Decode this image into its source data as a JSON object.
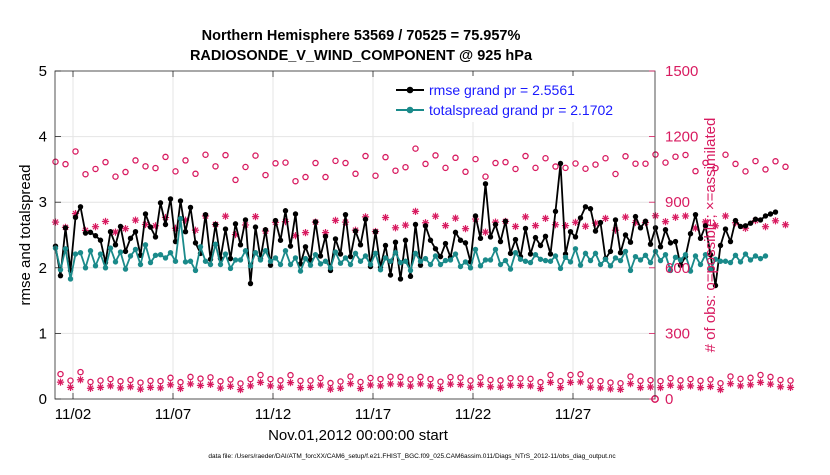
{
  "chart_data": {
    "type": "line",
    "title_line1": "Northern Hemisphere 53569 / 70525 = 75.957%",
    "title_line2": "RADIOSONDE_V_WIND_COMPONENT @ 925 hPa",
    "xlabel": "Nov.01,2012 00:00:00 start",
    "ylabel_left": "rmse and totalspread",
    "ylabel_right": "# of obs: o=possible; ×=assimilated",
    "xlim": [
      0.6,
      30.6
    ],
    "ylim_left": [
      0,
      5
    ],
    "ylim_right": [
      0,
      1500
    ],
    "x_tick_positions": [
      1.5,
      6.5,
      11.5,
      16.5,
      21.5,
      26.5
    ],
    "x_tick_labels": [
      "11/02",
      "11/07",
      "11/12",
      "11/17",
      "11/22",
      "11/27"
    ],
    "y_left_ticks": [
      0,
      1,
      2,
      3,
      4,
      5
    ],
    "y_left_tick_labels": [
      "0",
      "1",
      "2",
      "3",
      "4",
      "5"
    ],
    "y_right_ticks": [
      0,
      300,
      600,
      900,
      1200,
      1500
    ],
    "y_right_tick_labels": [
      "0",
      "300",
      "600",
      "900",
      "1200",
      "1500"
    ],
    "x_start": 0.625,
    "x_step": 0.25,
    "series": [
      {
        "name": "rmse grand pr = 2.5561",
        "color": "#000000",
        "axis": "left",
        "values": [
          2.33,
          1.88,
          2.61,
          1.96,
          2.77,
          2.93,
          2.53,
          2.54,
          2.49,
          2.42,
          2.08,
          2.55,
          2.35,
          2.63,
          2.25,
          2.45,
          2.55,
          2.19,
          2.82,
          2.62,
          2.47,
          2.99,
          2.66,
          3.05,
          2.4,
          3.02,
          2.55,
          2.92,
          2.38,
          2.22,
          2.81,
          2.13,
          2.66,
          2.14,
          2.59,
          2.14,
          2.67,
          2.35,
          2.73,
          1.76,
          2.62,
          2.14,
          2.58,
          2.04,
          2.72,
          2.42,
          2.87,
          2.33,
          2.82,
          2.06,
          2.32,
          2.12,
          2.7,
          2.18,
          2.48,
          1.96,
          2.44,
          2.21,
          2.81,
          2.17,
          2.56,
          2.35,
          2.74,
          2.02,
          2.55,
          2.01,
          2.34,
          1.89,
          2.39,
          1.83,
          2.42,
          1.87,
          2.66,
          2.04,
          2.64,
          2.42,
          2.29,
          2.17,
          2.37,
          2.16,
          2.54,
          2.42,
          2.38,
          2.09,
          2.79,
          2.45,
          3.28,
          2.47,
          2.66,
          2.4,
          2.71,
          2.22,
          2.43,
          2.17,
          2.6,
          2.21,
          2.46,
          2.34,
          2.48,
          2.21,
          2.86,
          3.59,
          2.21,
          2.55,
          2.47,
          2.76,
          2.93,
          2.9,
          2.56,
          2.69,
          2.14,
          2.25,
          2.73,
          2.23,
          2.5,
          2.39,
          2.78,
          2.61,
          2.71,
          2.36,
          2.61,
          2.32,
          2.58,
          2.38,
          2.4,
          2.04,
          2.17,
          2.52,
          2.81,
          2.45,
          2.64,
          2.2,
          1.73,
          2.34,
          2.59,
          2.4,
          2.72,
          2.63,
          2.64,
          2.68,
          2.74,
          2.73,
          2.79,
          2.82,
          2.85
        ]
      },
      {
        "name": "totalspread grand pr = 2.1702",
        "color": "#1a8a8a",
        "axis": "left",
        "values": [
          2.3,
          1.97,
          2.29,
          1.83,
          2.21,
          2.23,
          2.0,
          2.26,
          2.03,
          2.21,
          2.0,
          2.3,
          2.09,
          2.24,
          1.98,
          2.18,
          2.28,
          2.05,
          2.35,
          2.08,
          2.19,
          2.2,
          2.15,
          2.23,
          2.1,
          2.75,
          2.09,
          2.1,
          1.96,
          2.32,
          2.1,
          2.05,
          2.36,
          2.05,
          2.21,
          1.99,
          2.12,
          2.12,
          2.26,
          2.03,
          2.23,
          2.12,
          2.26,
          2.1,
          2.15,
          2.05,
          2.26,
          2.05,
          2.15,
          1.95,
          2.14,
          2.04,
          2.2,
          2.06,
          2.1,
          2.0,
          2.24,
          2.07,
          2.15,
          2.05,
          2.22,
          2.1,
          2.18,
          2.05,
          2.22,
          1.97,
          2.15,
          2.1,
          2.23,
          2.08,
          2.1,
          1.96,
          2.22,
          2.1,
          2.14,
          2.05,
          2.18,
          2.05,
          2.11,
          2.12,
          2.21,
          2.02,
          2.09,
          2.0,
          2.28,
          2.03,
          2.12,
          2.12,
          2.28,
          2.05,
          2.11,
          1.98,
          2.23,
          2.13,
          2.1,
          2.08,
          2.2,
          2.13,
          2.11,
          2.1,
          2.18,
          1.99,
          2.16,
          2.09,
          2.29,
          2.04,
          2.22,
          2.11,
          2.22,
          2.05,
          2.13,
          2.03,
          2.15,
          2.11,
          2.25,
          1.96,
          2.17,
          2.12,
          2.19,
          2.08,
          2.25,
          2.11,
          2.2,
          1.96,
          2.16,
          2.12,
          2.2,
          1.95,
          2.18,
          2.05,
          2.2,
          1.97,
          2.13,
          2.1,
          2.1,
          2.08,
          2.19,
          2.09,
          2.21,
          2.12,
          2.18,
          2.14,
          2.18
        ]
      },
      {
        "name": "possible",
        "marker": "o",
        "color": "#d81b60",
        "axis": "right",
        "values": [
          1085,
          114,
          1074,
          84,
          1132,
          123,
          1028,
          78,
          1052,
          84,
          1083,
          91,
          1017,
          81,
          1038,
          87,
          1091,
          75,
          1064,
          83,
          1056,
          82,
          1107,
          97,
          1041,
          77,
          1091,
          101,
          1030,
          93,
          1117,
          99,
          1064,
          81,
          1115,
          89,
          1002,
          71,
          1061,
          91,
          1113,
          110,
          1024,
          91,
          1078,
          85,
          1081,
          109,
          996,
          83,
          1015,
          84,
          1079,
          96,
          1015,
          73,
          1089,
          80,
          1079,
          103,
          1030,
          78,
          1111,
          96,
          1021,
          91,
          1106,
          102,
          1044,
          101,
          1060,
          90,
          1145,
          101,
          1075,
          91,
          1114,
          79,
          1057,
          100,
          1103,
          98,
          1039,
          84,
          1097,
          99,
          1017,
          87,
          1079,
          85,
          1083,
          95,
          1052,
          94,
          1111,
          92,
          1057,
          77,
          1101,
          110,
          1063,
          82,
          1057,
          110,
          1077,
          113,
          1053,
          84,
          1072,
          82,
          1101,
          75,
          1029,
          72,
          1110,
          103,
          1076,
          83,
          1076,
          86,
          1118,
          82,
          1081,
          95,
          1108,
          85,
          1116,
          91,
          1042,
          83,
          1080,
          89,
          1056,
          72,
          1117,
          103,
          1075,
          92,
          1041,
          97,
          1088,
          110,
          1050,
          101,
          1087,
          87,
          1062,
          84
        ]
      },
      {
        "name": "assimilated",
        "marker": "*",
        "color": "#d81b60",
        "axis": "right",
        "values": [
          809,
          77,
          785,
          53,
          848,
          88,
          771,
          49,
          788,
          53,
          812,
          60,
          763,
          51,
          779,
          56,
          818,
          45,
          798,
          53,
          792,
          51,
          830,
          65,
          781,
          48,
          818,
          69,
          772,
          62,
          837,
          67,
          798,
          50,
          836,
          58,
          752,
          43,
          796,
          60,
          834,
          76,
          768,
          60,
          808,
          54,
          811,
          75,
          747,
          52,
          761,
          53,
          809,
          64,
          761,
          45,
          817,
          49,
          809,
          70,
          772,
          48,
          833,
          64,
          766,
          60,
          830,
          69,
          783,
          68,
          795,
          59,
          858,
          69,
          806,
          60,
          836,
          48,
          793,
          68,
          827,
          66,
          779,
          54,
          823,
          67,
          763,
          56,
          809,
          54,
          812,
          63,
          789,
          62,
          833,
          60,
          793,
          48,
          826,
          76,
          797,
          52,
          793,
          76,
          808,
          78,
          790,
          54,
          804,
          51,
          826,
          46,
          772,
          44,
          832,
          70,
          807,
          52,
          807,
          55,
          838,
          52,
          811,
          63,
          831,
          54,
          837,
          60,
          782,
          52,
          810,
          57,
          792,
          43,
          837,
          70,
          806,
          60,
          781,
          65,
          816,
          76,
          788,
          68,
          815,
          56,
          797,
          53
        ]
      }
    ],
    "legend": {
      "position": "top-right",
      "entries": [
        "rmse grand pr = 2.5561",
        "totalspread grand pr = 2.1702"
      ]
    },
    "right_axis_endpoint": 0
  },
  "footer": {
    "data_file": "data file: /Users/raeder/DAI/ATM_forcXX/CAM6_setup/f.e21.FHIST_BGC.f09_025.CAM6assim.011/Diags_NTrS_2012-11/obs_diag_output.nc"
  },
  "colors": {
    "rmse": "#000000",
    "spread": "#1a8a8a",
    "obs": "#d81b60",
    "legend_text": "#1a1aff",
    "grid": "#e4e4e4"
  }
}
